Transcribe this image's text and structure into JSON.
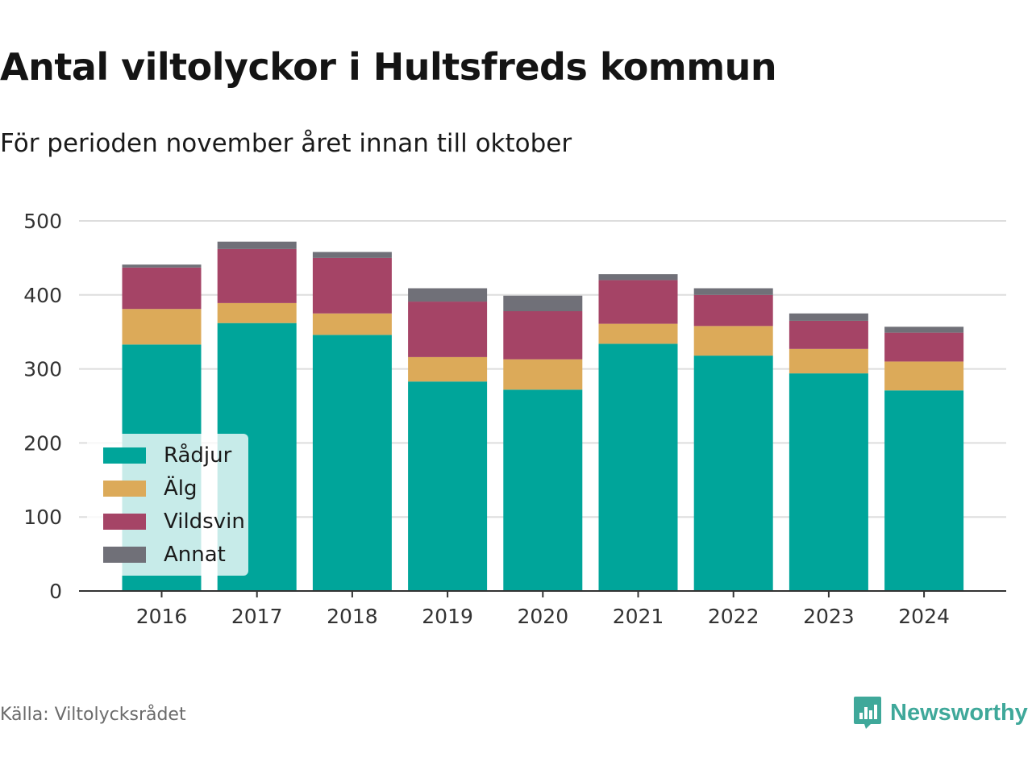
{
  "title": "Antal viltolyckor i Hultsfreds kommun",
  "subtitle": "För perioden november året innan till oktober",
  "source": "Källa: Viltolycksrådet",
  "brand": "Newsworthy",
  "colors": {
    "Rådjur": "#00a59a",
    "Älg": "#dcaa59",
    "Vildsvin": "#a54466",
    "Annat": "#707078",
    "grid": "#dddddd",
    "axis": "#333333",
    "brand": "#3fa89a"
  },
  "chart_data": {
    "type": "bar",
    "stacked": true,
    "categories": [
      "2016",
      "2017",
      "2018",
      "2019",
      "2020",
      "2021",
      "2022",
      "2023",
      "2024"
    ],
    "series": [
      {
        "name": "Rådjur",
        "values": [
          333,
          362,
          346,
          283,
          272,
          334,
          318,
          294,
          271
        ]
      },
      {
        "name": "Älg",
        "values": [
          48,
          27,
          29,
          33,
          41,
          27,
          40,
          33,
          39
        ]
      },
      {
        "name": "Vildsvin",
        "values": [
          56,
          73,
          75,
          75,
          65,
          59,
          42,
          38,
          39
        ]
      },
      {
        "name": "Annat",
        "values": [
          4,
          10,
          8,
          18,
          21,
          8,
          9,
          10,
          8
        ]
      }
    ],
    "ylim": [
      0,
      500
    ],
    "yticks": [
      0,
      100,
      200,
      300,
      400,
      500
    ],
    "xlabel": "",
    "ylabel": "",
    "grid": true,
    "legend_position": "bottom-left"
  }
}
